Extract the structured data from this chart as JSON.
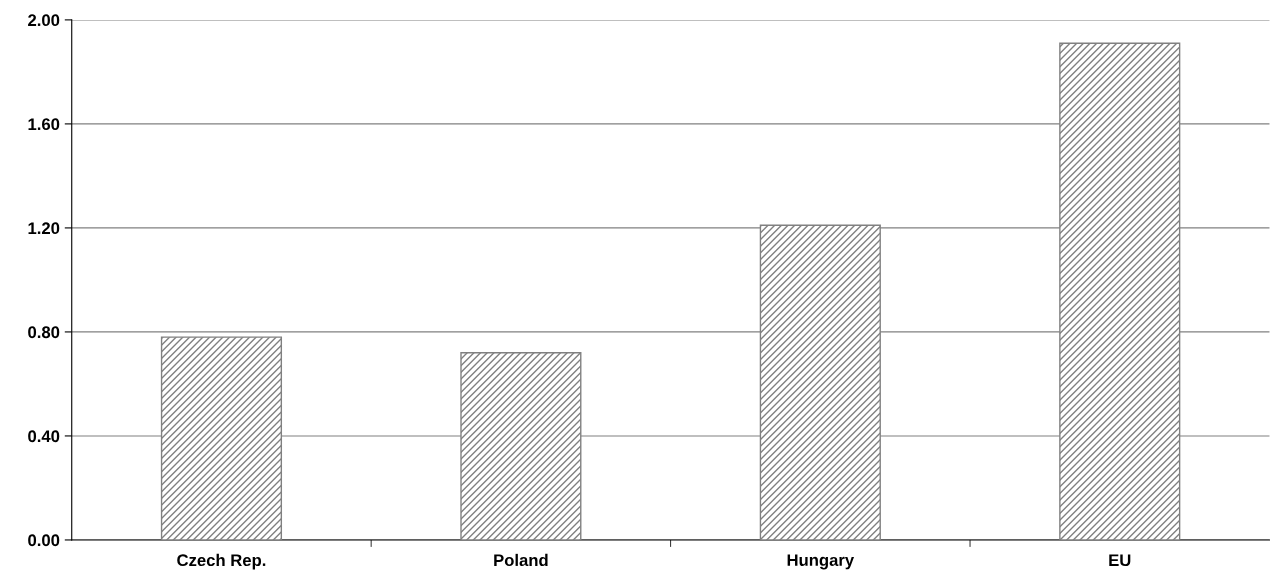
{
  "chart_data": {
    "type": "bar",
    "categories": [
      "Czech Rep.",
      "Poland",
      "Hungary",
      "EU"
    ],
    "values": [
      0.78,
      0.72,
      1.21,
      1.91
    ],
    "color": "#808080",
    "ylim": [
      0,
      2.0
    ],
    "yticks": [
      {
        "value": 0,
        "label": "0.00"
      },
      {
        "value": 0.4,
        "label": "0.40"
      },
      {
        "value": 0.8,
        "label": "0.80"
      },
      {
        "value": 1.2,
        "label": "1.20"
      },
      {
        "value": 1.6,
        "label": "1.60"
      },
      {
        "value": 2.0,
        "label": "2.00"
      }
    ],
    "grid": "y"
  }
}
